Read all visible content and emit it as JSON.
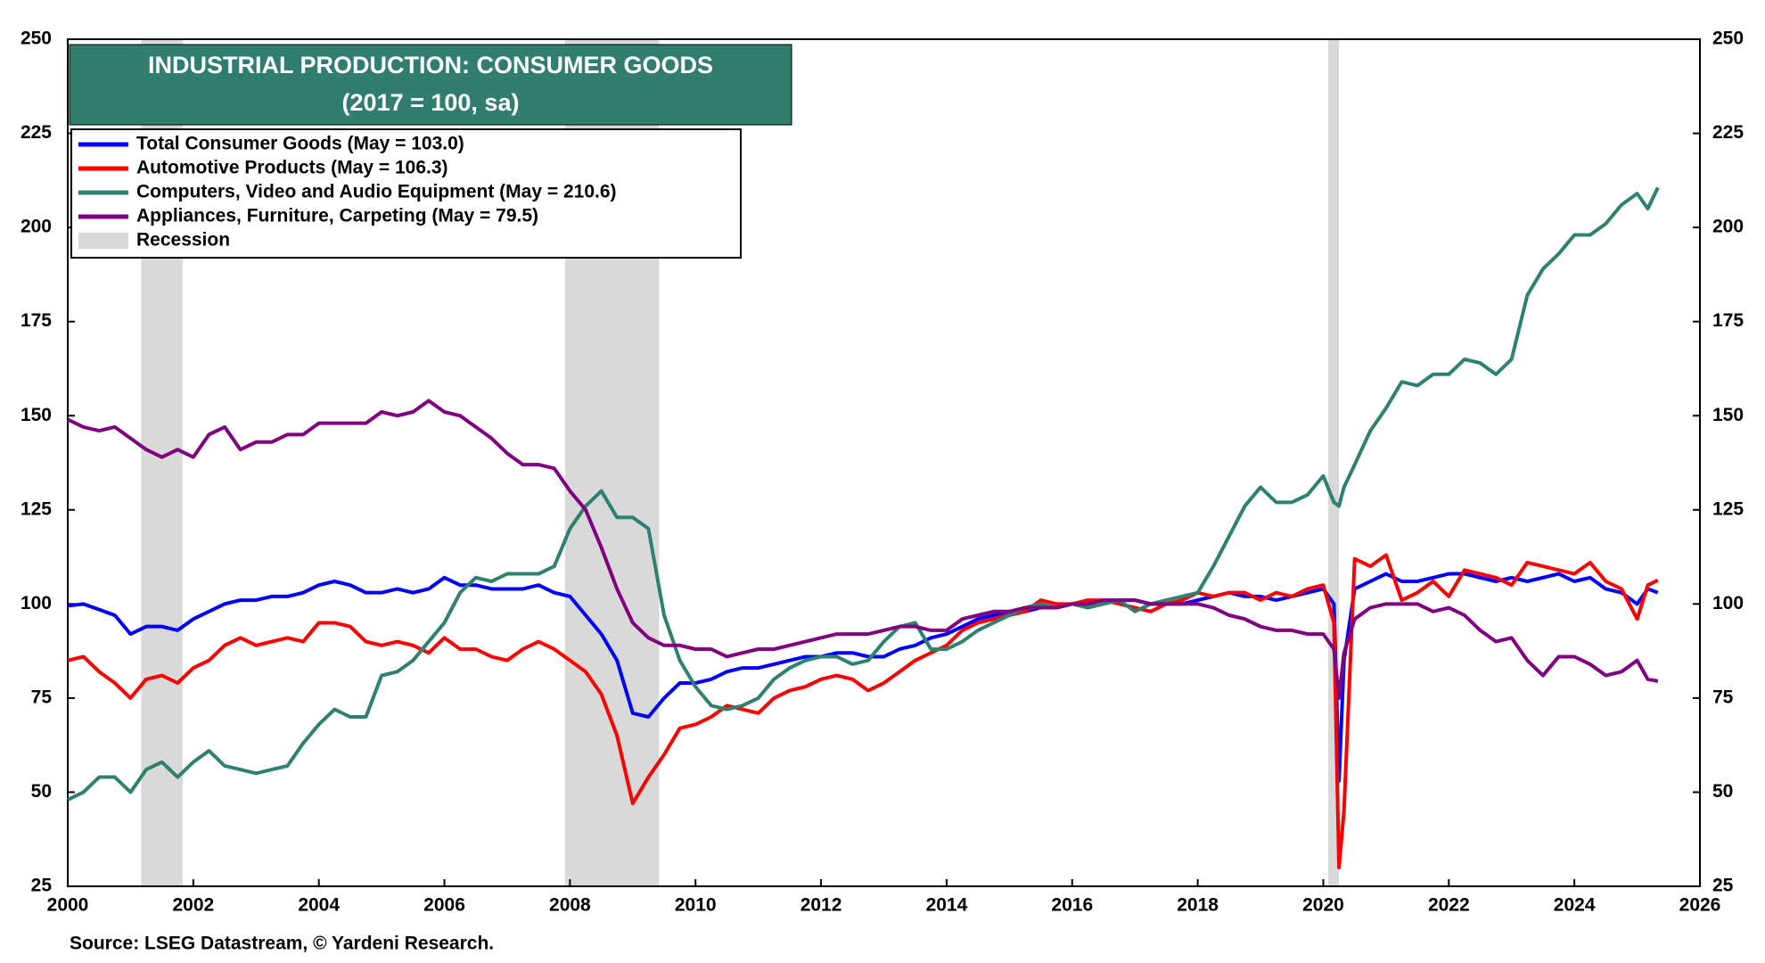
{
  "chart_data": {
    "type": "line",
    "title": "INDUSTRIAL PRODUCTION: CONSUMER GOODS",
    "subtitle": "(2017 = 100, sa)",
    "source": "Source: LSEG Datastream, © Yardeni Research.",
    "xlim": [
      2000,
      2026
    ],
    "xticks": [
      2000,
      2002,
      2004,
      2006,
      2008,
      2010,
      2012,
      2014,
      2016,
      2018,
      2020,
      2022,
      2024,
      2026
    ],
    "ylim": [
      25,
      250
    ],
    "yticks": [
      25,
      50,
      75,
      100,
      125,
      150,
      175,
      200,
      225,
      250
    ],
    "recession_label": "Recession",
    "recession_color": "#d9d9d9",
    "recessions": [
      [
        2001.17,
        2001.83
      ],
      [
        2007.92,
        2009.42
      ],
      [
        2020.08,
        2020.25
      ]
    ],
    "x": [
      2000,
      2000.25,
      2000.5,
      2000.75,
      2001,
      2001.25,
      2001.5,
      2001.75,
      2002,
      2002.25,
      2002.5,
      2002.75,
      2003,
      2003.25,
      2003.5,
      2003.75,
      2004,
      2004.25,
      2004.5,
      2004.75,
      2005,
      2005.25,
      2005.5,
      2005.75,
      2006,
      2006.25,
      2006.5,
      2006.75,
      2007,
      2007.25,
      2007.5,
      2007.75,
      2008,
      2008.25,
      2008.5,
      2008.75,
      2009,
      2009.25,
      2009.5,
      2009.75,
      2010,
      2010.25,
      2010.5,
      2010.75,
      2011,
      2011.25,
      2011.5,
      2011.75,
      2012,
      2012.25,
      2012.5,
      2012.75,
      2013,
      2013.25,
      2013.5,
      2013.75,
      2014,
      2014.25,
      2014.5,
      2014.75,
      2015,
      2015.25,
      2015.5,
      2015.75,
      2016,
      2016.25,
      2016.5,
      2016.75,
      2017,
      2017.25,
      2017.5,
      2017.75,
      2018,
      2018.25,
      2018.5,
      2018.75,
      2019,
      2019.25,
      2019.5,
      2019.75,
      2020,
      2020.17,
      2020.25,
      2020.33,
      2020.5,
      2020.75,
      2021,
      2021.25,
      2021.5,
      2021.75,
      2022,
      2022.25,
      2022.5,
      2022.75,
      2023,
      2023.25,
      2023.5,
      2023.75,
      2024,
      2024.25,
      2024.5,
      2024.75,
      2025,
      2025.17,
      2025.33
    ],
    "series": [
      {
        "name": "Total Consumer Goods (May = 103.0)",
        "color": "#0000ff",
        "values": [
          99.5,
          100,
          98.5,
          97,
          92,
          94,
          94,
          93,
          96,
          98,
          100,
          101,
          101,
          102,
          102,
          103,
          105,
          106,
          105,
          103,
          103,
          104,
          103,
          104,
          107,
          105,
          105,
          104,
          104,
          104,
          105,
          103,
          102,
          97,
          92,
          85,
          71,
          70,
          75,
          79,
          79,
          80,
          82,
          83,
          83,
          84,
          85,
          86,
          86,
          87,
          87,
          86,
          86,
          88,
          89,
          91,
          92,
          94,
          96,
          97,
          98,
          98,
          99,
          99,
          100,
          100,
          101,
          101,
          101,
          100,
          100,
          100,
          101,
          102,
          103,
          102,
          102,
          101,
          102,
          103,
          104,
          100,
          53,
          85,
          104,
          106,
          108,
          106,
          106,
          107,
          108,
          108,
          107,
          106,
          107,
          106,
          107,
          108,
          106,
          107,
          104,
          103,
          100,
          104,
          103.0
        ]
      },
      {
        "name": "Automotive Products (May = 106.3)",
        "color": "#ff0000",
        "values": [
          85,
          86,
          82,
          79,
          75,
          80,
          81,
          79,
          83,
          85,
          89,
          91,
          89,
          90,
          91,
          90,
          95,
          95,
          94,
          90,
          89,
          90,
          89,
          87,
          91,
          88,
          88,
          86,
          85,
          88,
          90,
          88,
          85,
          82,
          76,
          65,
          47,
          54,
          60,
          67,
          68,
          70,
          73,
          72,
          71,
          75,
          77,
          78,
          80,
          81,
          80,
          77,
          79,
          82,
          85,
          87,
          89,
          93,
          95,
          96,
          97,
          98,
          101,
          100,
          100,
          101,
          101,
          100,
          99,
          98,
          100,
          101,
          103,
          102,
          103,
          103,
          101,
          103,
          102,
          104,
          105,
          95,
          30,
          45,
          112,
          110,
          113,
          101,
          103,
          106,
          102,
          109,
          108,
          107,
          105,
          111,
          110,
          109,
          108,
          111,
          106,
          104,
          96,
          105,
          106.3
        ]
      },
      {
        "name": "Computers, Video and Audio Equipment (May = 210.6)",
        "color": "#2e8070",
        "values": [
          48,
          50,
          54,
          54,
          50,
          56,
          58,
          54,
          58,
          61,
          57,
          56,
          55,
          56,
          57,
          63,
          68,
          72,
          70,
          70,
          81,
          82,
          85,
          90,
          95,
          103,
          107,
          106,
          108,
          108,
          108,
          110,
          120,
          126,
          130,
          123,
          123,
          120,
          97,
          85,
          78,
          73,
          72,
          73,
          75,
          80,
          83,
          85,
          86,
          86,
          84,
          85,
          90,
          94,
          95,
          88,
          88,
          90,
          93,
          95,
          97,
          99,
          100,
          99,
          100,
          99,
          100,
          101,
          98,
          100,
          101,
          102,
          103,
          110,
          118,
          126,
          131,
          127,
          127,
          129,
          134,
          127,
          126,
          131,
          137,
          146,
          152,
          159,
          158,
          161,
          161,
          165,
          164,
          161,
          165,
          182,
          189,
          193,
          198,
          198,
          201,
          206,
          209,
          205,
          210.6
        ]
      },
      {
        "name": "Appliances, Furniture, Carpeting (May = 79.5)",
        "color": "#800080",
        "values": [
          149,
          147,
          146,
          147,
          144,
          141,
          139,
          141,
          139,
          145,
          147,
          141,
          143,
          143,
          145,
          145,
          148,
          148,
          148,
          148,
          151,
          150,
          151,
          154,
          151,
          150,
          147,
          144,
          140,
          137,
          137,
          136,
          130,
          125,
          115,
          104,
          95,
          91,
          89,
          89,
          88,
          88,
          86,
          87,
          88,
          88,
          89,
          90,
          91,
          92,
          92,
          92,
          93,
          94,
          94,
          93,
          93,
          96,
          97,
          98,
          98,
          99,
          99,
          99,
          100,
          100,
          101,
          101,
          101,
          100,
          100,
          100,
          100,
          99,
          97,
          96,
          94,
          93,
          93,
          92,
          92,
          88,
          75,
          87,
          96,
          99,
          100,
          100,
          100,
          98,
          99,
          97,
          93,
          90,
          91,
          85,
          81,
          86,
          86,
          84,
          81,
          82,
          85,
          80,
          79.5
        ]
      }
    ]
  }
}
